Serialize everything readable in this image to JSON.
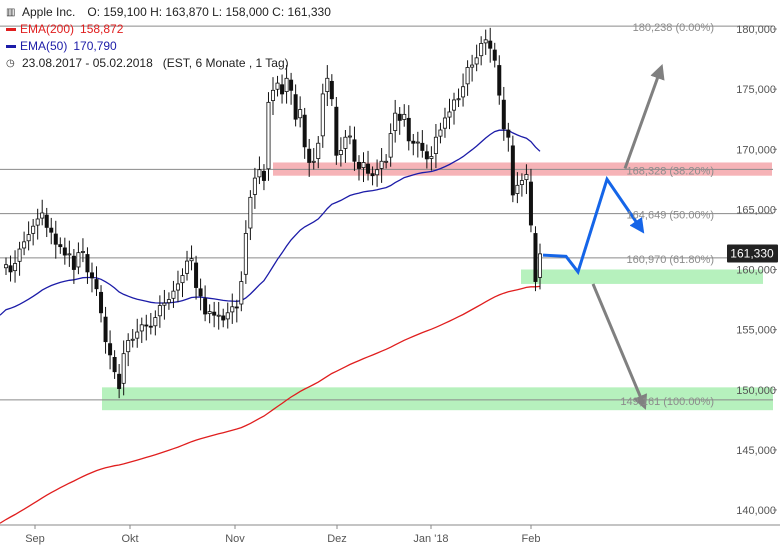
{
  "legend": {
    "symbol": "Apple Inc.",
    "ohlc": "O: 159,100  H: 163,870  L: 158,000  C: 161,330",
    "ema200_label": "EMA(200)",
    "ema200_value": "158,872",
    "ema50_label": "EMA(50)",
    "ema50_value": "170,790",
    "period": "23.08.2017 - 05.02.2018",
    "period_info": "(EST, 6 Monate , 1 Tag)"
  },
  "colors": {
    "candle": "#111111",
    "ema200": "#e01e1e",
    "ema50": "#1c1ca8",
    "resistance_zone": "#f4a6aa",
    "support_zone": "#a9efb1",
    "scenario_blue": "#1565e8",
    "scenario_gray": "#808080",
    "price_tag_bg": "#222222"
  },
  "chart_data": {
    "type": "candlestick",
    "ylim": [
      138500,
      181500
    ],
    "x_ticks": [
      "Sep",
      "Okt",
      "Nov",
      "Dez",
      "Jan '18",
      "Feb"
    ],
    "y_ticks": [
      "140,000",
      "145,000",
      "150,000",
      "155,000",
      "160,000",
      "165,000",
      "170,000",
      "175,000",
      "180,000"
    ],
    "y_tick_values": [
      140000,
      145000,
      150000,
      155000,
      160000,
      165000,
      170000,
      175000,
      180000
    ],
    "last_price_tag": "161,330",
    "last_price": 161330,
    "fib_levels": [
      {
        "label": "180,238 (0.00%)",
        "value": 180238
      },
      {
        "label": "168,328 (38.20%)",
        "value": 168328
      },
      {
        "label": "164,649 (50.00%)",
        "value": 164649
      },
      {
        "label": "160,970 (61.80%)",
        "value": 160970
      },
      {
        "label": "149,161 (100.00%)",
        "value": 149161
      }
    ],
    "zones": [
      {
        "name": "resistance",
        "from": 167800,
        "to": 168900
      },
      {
        "name": "support",
        "from": 158800,
        "to": 160000
      },
      {
        "name": "support",
        "from": 148300,
        "to": 150200
      }
    ],
    "ohlc_closes": [
      160.4,
      159.8,
      160.5,
      161.7,
      162.3,
      162.9,
      163.6,
      164.2,
      164.7,
      163.5,
      163.1,
      162.1,
      161.9,
      161.2,
      161.3,
      160.0,
      161.4,
      161.5,
      159.8,
      159.3,
      158.4,
      156.4,
      154.0,
      152.9,
      151.5,
      150.1,
      153.0,
      154.1,
      154.2,
      154.8,
      155.4,
      155.3,
      155.2,
      156.0,
      157.0,
      157.2,
      157.5,
      158.2,
      158.8,
      159.5,
      160.7,
      160.9,
      158.5,
      157.8,
      156.3,
      156.5,
      156.2,
      156.2,
      155.8,
      156.4,
      156.9,
      156.8,
      159.0,
      163.0,
      166.0,
      167.6,
      168.3,
      167.4,
      173.9,
      174.9,
      175.5,
      174.6,
      175.9,
      174.9,
      172.5,
      173.3,
      170.2,
      168.9,
      169.0,
      170.5,
      174.6,
      175.9,
      174.2,
      169.5,
      169.9,
      171.0,
      171.1,
      169.0,
      168.4,
      168.9,
      168.0,
      167.8,
      168.3,
      169.0,
      169.0,
      171.3,
      173.0,
      172.4,
      172.9,
      170.7,
      170.5,
      170.6,
      169.9,
      169.2,
      169.4,
      171.0,
      171.6,
      172.6,
      173.1,
      174.1,
      174.2,
      175.2,
      176.8,
      177.0,
      177.6,
      178.8,
      179.1,
      178.4,
      177.4,
      174.5,
      171.7,
      171.0,
      166.2,
      167.0,
      167.4,
      167.9,
      163.7,
      159.0,
      161.3
    ],
    "scenarios": [
      {
        "name": "blue-path",
        "points": [
          [
            0,
            161200
          ],
          [
            1,
            161100
          ],
          [
            2,
            159800
          ],
          [
            3,
            167500
          ],
          [
            4,
            163500
          ]
        ]
      },
      {
        "name": "gray-up",
        "points": [
          [
            0,
            168400
          ],
          [
            1,
            176500
          ]
        ]
      },
      {
        "name": "gray-down",
        "points": [
          [
            0,
            158800
          ],
          [
            1,
            148900
          ]
        ]
      }
    ]
  }
}
